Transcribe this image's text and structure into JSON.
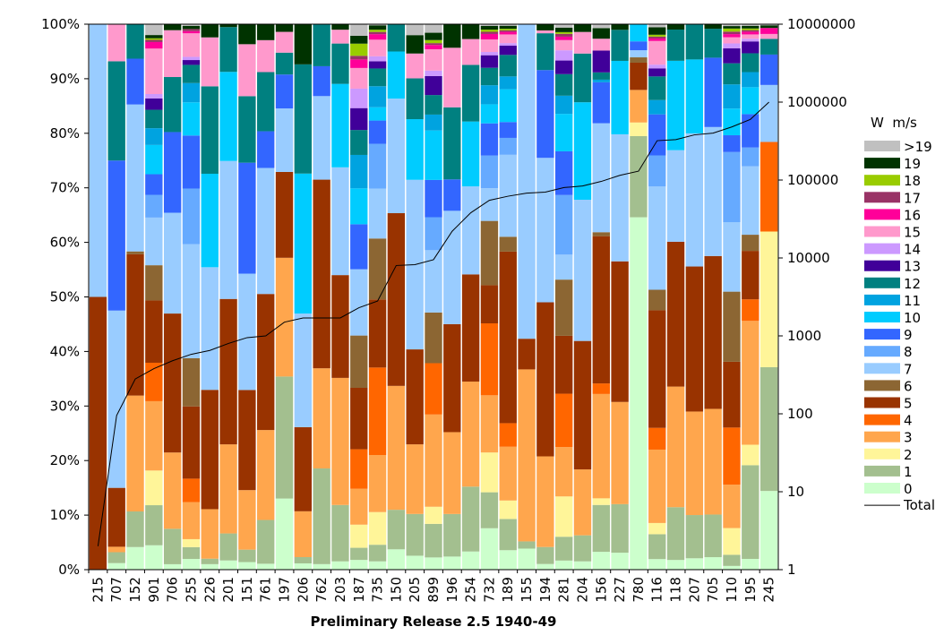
{
  "chart_data": {
    "type": "bar",
    "stacked": "percent",
    "title": "Preliminary Release 2.5 1940-49",
    "legend_title": "W  m/s",
    "legend_position": "right",
    "grid": false,
    "y_left": {
      "ticks": [
        "0%",
        "10%",
        "20%",
        "30%",
        "40%",
        "50%",
        "60%",
        "70%",
        "80%",
        "90%",
        "100%"
      ],
      "range": [
        0,
        100
      ]
    },
    "y_right": {
      "ticks": [
        "1",
        "10",
        "100",
        "1000",
        "10000",
        "100000",
        "1000000",
        "10000000"
      ],
      "scale": "log",
      "range": [
        1,
        10000000
      ]
    },
    "categories": [
      "215",
      "707",
      "152",
      "901",
      "706",
      "255",
      "226",
      "201",
      "151",
      "761",
      "197",
      "206",
      "762",
      "203",
      "187",
      "735",
      "150",
      "205",
      "899",
      "196",
      "254",
      "732",
      "189",
      "155",
      "194",
      "281",
      "204",
      "156",
      "227",
      "780",
      "116",
      "118",
      "207",
      "705",
      "110",
      "195",
      "245"
    ],
    "series": [
      {
        "name": "0",
        "color": "#ccffcc",
        "values": [
          0,
          1.2,
          4,
          4.5,
          1,
          2,
          1,
          1.6,
          1.4,
          1,
          13,
          1,
          1,
          1.5,
          1.6,
          1.5,
          3.5,
          2.8,
          2,
          2,
          3.3,
          7.6,
          3.8,
          3.5,
          1,
          1.6,
          1.5,
          2.7,
          3,
          59.5,
          1.7,
          1.8,
          2,
          2.2,
          0.6,
          2,
          14.5
        ]
      },
      {
        "name": "1",
        "color": "#a3bf8f",
        "values": [
          0,
          2,
          6.3,
          7.4,
          6.5,
          2.2,
          1,
          4.7,
          2.3,
          7.4,
          22.3,
          1,
          17.3,
          10.2,
          2,
          3,
          6.8,
          8.4,
          5.5,
          6.5,
          11.8,
          6.6,
          6.1,
          1.2,
          3,
          4.2,
          4.7,
          7.1,
          8.6,
          13.7,
          4,
          9.8,
          7.6,
          7.5,
          1.8,
          17.4,
          22.8
        ]
      },
      {
        "name": "2",
        "color": "#fff599",
        "values": [
          0,
          0,
          0,
          6.4,
          0,
          1.5,
          0,
          0,
          0,
          0,
          0,
          0,
          0,
          0,
          3.8,
          5.9,
          0,
          0,
          2.8,
          0,
          0,
          7.3,
          3.6,
          0,
          0,
          7.1,
          0,
          1,
          0,
          2.3,
          1.8,
          0,
          0,
          0,
          4.3,
          3.8,
          25
        ]
      },
      {
        "name": "3",
        "color": "#ffa64d",
        "values": [
          0,
          1,
          20.5,
          12.8,
          14,
          6.9,
          9,
          15.5,
          11,
          15.2,
          21.7,
          7.3,
          18.1,
          23,
          5.9,
          10.3,
          21.3,
          14,
          15.1,
          12.5,
          19.1,
          10.5,
          10.5,
          28.6,
          16,
          8.7,
          11.9,
          15.8,
          18.1,
          5.5,
          11.8,
          22.4,
          18.2,
          18.6,
          7,
          23,
          0
        ]
      },
      {
        "name": "4",
        "color": "#ff6600",
        "values": [
          0,
          0,
          0,
          7.1,
          0,
          4.4,
          0,
          0,
          0,
          0,
          0,
          0,
          0,
          0,
          6.5,
          15.8,
          0,
          0,
          8.4,
          0,
          0,
          13.2,
          4.6,
          0,
          0,
          9.4,
          0,
          1.6,
          0,
          0,
          3.5,
          0,
          0,
          0,
          9.2,
          4,
          16.5
        ]
      },
      {
        "name": "5",
        "color": "#993300",
        "values": [
          50,
          10.8,
          25,
          11.5,
          25.5,
          13.5,
          21.7,
          25.3,
          18.5,
          23,
          15.7,
          13.4,
          34.1,
          18.6,
          10.1,
          12.3,
          29.7,
          19.1,
          0,
          16.5,
          19.5,
          7,
          33.5,
          5.1,
          27.2,
          10.2,
          23.2,
          22.3,
          24.9,
          4.6,
          18.9,
          26.9,
          25.5,
          26.9,
          10.6,
          9,
          0
        ]
      },
      {
        "name": "6",
        "color": "#8c6633",
        "values": [
          0,
          0,
          0.5,
          6.5,
          0,
          9,
          0,
          0,
          0,
          0,
          0,
          0,
          0,
          0,
          8.6,
          11,
          0,
          0,
          8.3,
          0,
          0,
          11.8,
          2.9,
          0,
          0,
          9.9,
          0,
          0.6,
          0,
          0.9,
          3.3,
          0,
          0,
          0,
          11.3,
          3,
          0
        ]
      },
      {
        "name": "7",
        "color": "#99ccff",
        "values": [
          50,
          32.5,
          26,
          8.8,
          18.5,
          21.3,
          22.3,
          24,
          21.5,
          21.3,
          11.6,
          18.1,
          15.1,
          19.5,
          10.9,
          9,
          19.7,
          34.1,
          10.2,
          17.3,
          16,
          6,
          16,
          52.3,
          25.5,
          4.4,
          25.5,
          16.5,
          22.5,
          1.2,
          16.6,
          17,
          23.4,
          22.7,
          11.2,
          12.7,
          10.5
        ]
      },
      {
        "name": "8",
        "color": "#66aaff",
        "values": [
          0,
          0,
          0,
          4.2,
          0,
          10.4,
          0,
          0,
          0,
          0,
          0,
          0,
          0,
          0,
          0,
          8.1,
          0,
          0,
          5.4,
          0,
          0,
          6,
          3.3,
          0,
          0,
          10.5,
          0,
          0,
          0,
          0,
          5,
          0,
          0,
          0,
          11.3,
          3.5,
          0
        ]
      },
      {
        "name": "9",
        "color": "#3366ff",
        "values": [
          0,
          27.5,
          8.1,
          3.8,
          14.8,
          9.9,
          0,
          0,
          20.5,
          6.2,
          6.2,
          0,
          5.4,
          0,
          7.4,
          4.2,
          0,
          0,
          6.1,
          4.8,
          0,
          5.9,
          3.1,
          0,
          15.5,
          7.7,
          0,
          6.2,
          0,
          1.5,
          6.6,
          0,
          0,
          12.2,
          2.7,
          6.2,
          5.6
        ]
      },
      {
        "name": "10",
        "color": "#00ccff",
        "values": [
          0,
          0,
          0,
          5.4,
          0,
          6.2,
          17,
          15.5,
          0,
          0,
          0,
          22.3,
          0,
          15.1,
          5.9,
          2.4,
          8.1,
          12.2,
          8.1,
          0,
          11.8,
          3.5,
          6.4,
          0,
          0,
          6.6,
          17.6,
          0,
          13,
          2.9,
          0,
          16.6,
          13,
          0,
          4.3,
          5,
          0
        ]
      },
      {
        "name": "11",
        "color": "#00a3e0",
        "values": [
          0,
          0,
          0,
          3.1,
          0,
          3.6,
          0,
          0,
          0,
          0,
          0,
          0,
          0,
          0,
          5.5,
          3.8,
          0,
          0,
          2.6,
          0,
          0,
          3.5,
          2.5,
          0,
          0,
          3.2,
          0,
          0.4,
          0,
          0,
          2.3,
          0,
          0,
          0,
          3.9,
          2.8,
          0
        ]
      },
      {
        "name": "12",
        "color": "#008080",
        "values": [
          0,
          18.2,
          6.1,
          3.4,
          10.1,
          3.4,
          15.9,
          7.8,
          12.3,
          10,
          4,
          17.4,
          7.6,
          7.3,
          4.1,
          3.2,
          4.7,
          8.2,
          3.2,
          11,
          10.3,
          3.2,
          4.2,
          0,
          6.5,
          3.8,
          8.8,
          1.1,
          5.5,
          0,
          3.8,
          5.8,
          6.2,
          5.1,
          3.4,
          3.5,
          2.9
        ]
      },
      {
        "name": "13",
        "color": "#400099",
        "values": [
          0,
          0,
          0,
          2.1,
          0,
          0.9,
          0,
          0,
          0,
          0,
          0,
          0,
          0,
          0,
          3.6,
          1.3,
          0,
          0,
          3.1,
          0,
          0,
          2.3,
          1.8,
          0,
          0,
          2.4,
          0,
          3.3,
          0,
          0,
          1.3,
          0,
          0,
          0,
          2.4,
          2.2,
          0
        ]
      },
      {
        "name": "14",
        "color": "#cc99ff",
        "values": [
          0,
          0,
          0,
          0.8,
          0,
          0.6,
          0,
          0,
          0,
          0,
          0,
          0,
          0,
          0,
          3.2,
          0.9,
          0,
          0,
          0.9,
          0,
          0,
          0.6,
          0.5,
          0,
          0,
          1.8,
          0,
          0,
          0,
          0,
          0.6,
          0,
          0,
          0,
          0.8,
          0.5,
          0
        ]
      },
      {
        "name": "15",
        "color": "#ff99cc",
        "values": [
          0,
          6.8,
          0,
          8.4,
          8.6,
          4.4,
          8.9,
          0,
          9.6,
          5.4,
          3.8,
          0,
          0,
          2.5,
          3.4,
          3,
          0,
          5,
          3.5,
          9.1,
          4.7,
          2.3,
          1.7,
          0,
          0.5,
          1.8,
          3.9,
          1.8,
          0,
          0,
          3.8,
          0,
          0,
          0,
          1,
          0.8,
          0.9
        ]
      },
      {
        "name": "16",
        "color": "#ff0099",
        "values": [
          0,
          0,
          0,
          1.2,
          0,
          0.4,
          0,
          0,
          0,
          0,
          0,
          0,
          0,
          0,
          1.4,
          1,
          0,
          0,
          0.7,
          0,
          0,
          1,
          0.5,
          0,
          0,
          0.6,
          0,
          0,
          0,
          0,
          0.4,
          0,
          0,
          0,
          0.5,
          0.5,
          1.1
        ]
      },
      {
        "name": "17",
        "color": "#993366",
        "values": [
          0,
          0,
          0,
          0.4,
          0,
          0.4,
          0,
          0,
          0,
          0,
          0,
          0,
          0,
          0,
          0.6,
          0.4,
          0,
          0,
          0.3,
          0,
          0,
          0.4,
          0.3,
          0,
          0,
          0.5,
          0,
          0,
          0,
          0,
          0.3,
          0,
          0,
          0,
          0.4,
          0.3,
          0
        ]
      },
      {
        "name": "18",
        "color": "#99cc00",
        "values": [
          0,
          0,
          0,
          0.3,
          0,
          0,
          0,
          0,
          0,
          0,
          0,
          0,
          0,
          0,
          2,
          0.4,
          0,
          0,
          0.5,
          0,
          0,
          0.4,
          0.3,
          0,
          0,
          0.3,
          0,
          0,
          0,
          0,
          0.3,
          0,
          0,
          0,
          0.5,
          0.3,
          0
        ]
      },
      {
        "name": "19",
        "color": "#003300",
        "values": [
          0,
          0,
          0,
          0.6,
          1.1,
          0.6,
          2.4,
          0.5,
          3.7,
          2.7,
          1.4,
          6.4,
          0,
          1,
          1.3,
          0.8,
          0,
          3.7,
          1.2,
          3.6,
          2.7,
          0.7,
          0.6,
          0,
          1.1,
          0.8,
          1.4,
          1.6,
          1,
          0,
          1.2,
          1,
          0,
          0.8,
          0.4,
          0.5,
          0.5
        ]
      },
      {
        "name": ">19",
        "color": "#c0c0c0",
        "values": [
          0,
          0,
          0,
          2,
          0,
          0.3,
          0,
          0,
          0,
          0,
          0,
          0,
          0,
          0,
          1.9,
          0.2,
          0,
          2.2,
          1.4,
          0,
          0,
          0.3,
          0.3,
          0,
          0,
          0.6,
          0,
          0.6,
          0,
          0,
          0.5,
          0,
          0,
          0,
          0.3,
          0.3,
          0.2
        ]
      }
    ],
    "line_series": {
      "name": "Total",
      "axis": "right",
      "color": "#000000",
      "values": [
        2,
        95,
        280,
        380,
        480,
        580,
        650,
        800,
        950,
        1000,
        1500,
        1700,
        1700,
        1700,
        2300,
        2800,
        8000,
        8200,
        9500,
        22000,
        38000,
        55000,
        62000,
        68000,
        70000,
        80000,
        84000,
        96000,
        115000,
        130000,
        320000,
        330000,
        380000,
        400000,
        480000,
        600000,
        1000000
      ]
    }
  }
}
